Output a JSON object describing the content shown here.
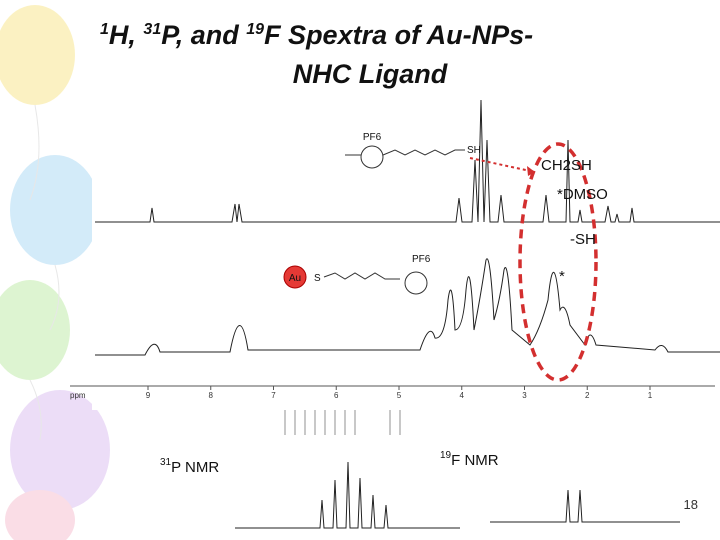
{
  "title": {
    "line1": [
      "1",
      "H, ",
      "31",
      "P, and ",
      "19",
      "F Spextra of Au-NPs-"
    ],
    "line2": "NHC Ligand"
  },
  "labels": {
    "ch2sh": "CH2SH",
    "dmso": "*DMSO",
    "sh": "-SH",
    "star": "*"
  },
  "structures": {
    "anion": "PF6",
    "thiol": "SH",
    "gold": "Au",
    "sulfur": "S"
  },
  "axis": {
    "unit": "ppm",
    "ticks": [
      "9",
      "8",
      "7",
      "6",
      "5",
      "4",
      "3",
      "2",
      "1"
    ]
  },
  "p_nmr": {
    "sup": "31",
    "text": "P NMR"
  },
  "f_nmr": {
    "sup": "19",
    "text": "F NMR"
  },
  "page_number": "18"
}
